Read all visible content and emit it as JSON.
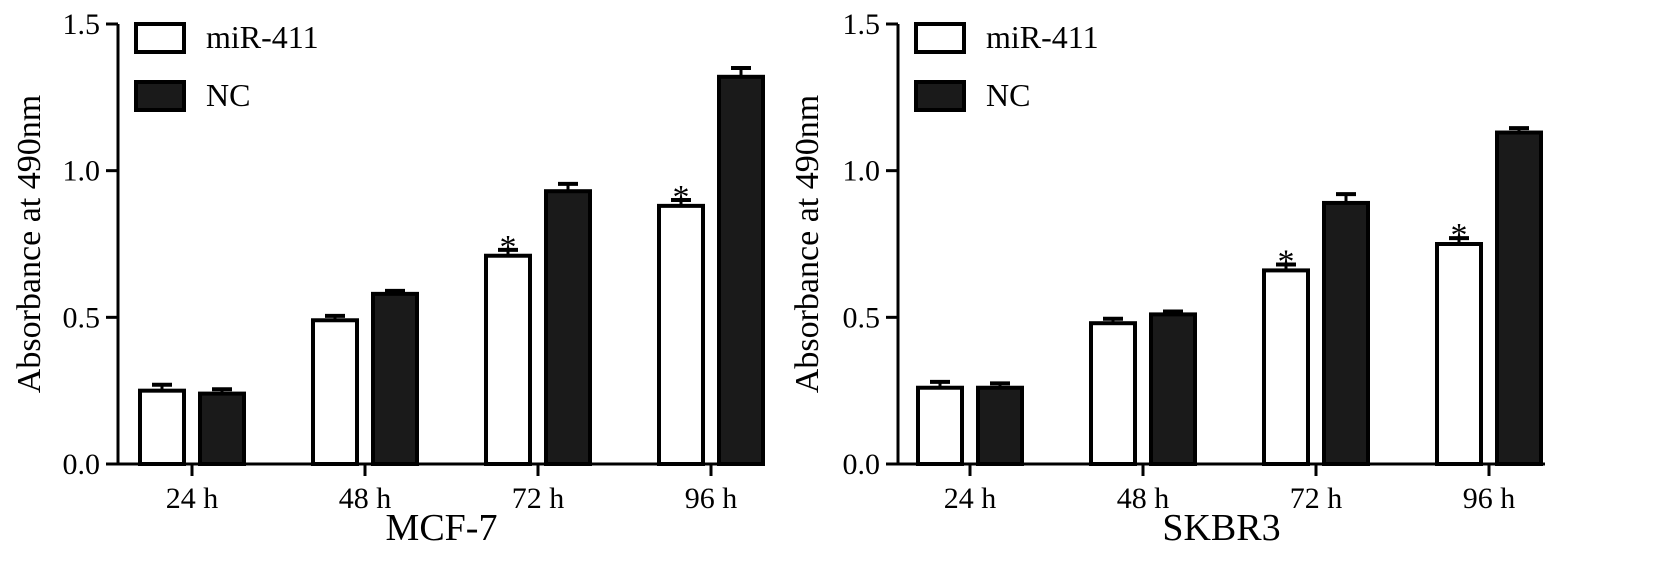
{
  "chart_data": [
    {
      "type": "bar",
      "panel": "MCF-7",
      "xlabel": "MCF-7",
      "ylabel": "Absorbance at 490nm",
      "categories": [
        "24 h",
        "48 h",
        "72 h",
        "96 h"
      ],
      "ylim": [
        0,
        1.5
      ],
      "yticks": [
        "0.0",
        "0.5",
        "1.0",
        "1.5"
      ],
      "legend_position": "top-left",
      "series": [
        {
          "name": "miR-411",
          "fill": "#ffffff",
          "values": [
            0.25,
            0.49,
            0.71,
            0.88
          ],
          "errors": [
            0.02,
            0.015,
            0.02,
            0.02
          ]
        },
        {
          "name": "NC",
          "fill": "#1a1a1a",
          "values": [
            0.24,
            0.58,
            0.93,
            1.32
          ],
          "errors": [
            0.015,
            0.01,
            0.025,
            0.03
          ]
        }
      ],
      "significance": [
        {
          "series": "miR-411",
          "category": "72 h",
          "mark": "*"
        },
        {
          "series": "miR-411",
          "category": "96 h",
          "mark": "*"
        }
      ]
    },
    {
      "type": "bar",
      "panel": "SKBR3",
      "xlabel": "SKBR3",
      "ylabel": "Absorbance at 490nm",
      "categories": [
        "24 h",
        "48 h",
        "72 h",
        "96 h"
      ],
      "ylim": [
        0,
        1.5
      ],
      "yticks": [
        "0.0",
        "0.5",
        "1.0",
        "1.5"
      ],
      "legend_position": "top-left",
      "series": [
        {
          "name": "miR-411",
          "fill": "#ffffff",
          "values": [
            0.26,
            0.48,
            0.66,
            0.75
          ],
          "errors": [
            0.02,
            0.015,
            0.02,
            0.02
          ]
        },
        {
          "name": "NC",
          "fill": "#1a1a1a",
          "values": [
            0.26,
            0.51,
            0.89,
            1.13
          ],
          "errors": [
            0.015,
            0.01,
            0.03,
            0.015
          ]
        }
      ],
      "significance": [
        {
          "series": "miR-411",
          "category": "72 h",
          "mark": "*"
        },
        {
          "series": "miR-411",
          "category": "96 h",
          "mark": "*"
        }
      ]
    }
  ]
}
